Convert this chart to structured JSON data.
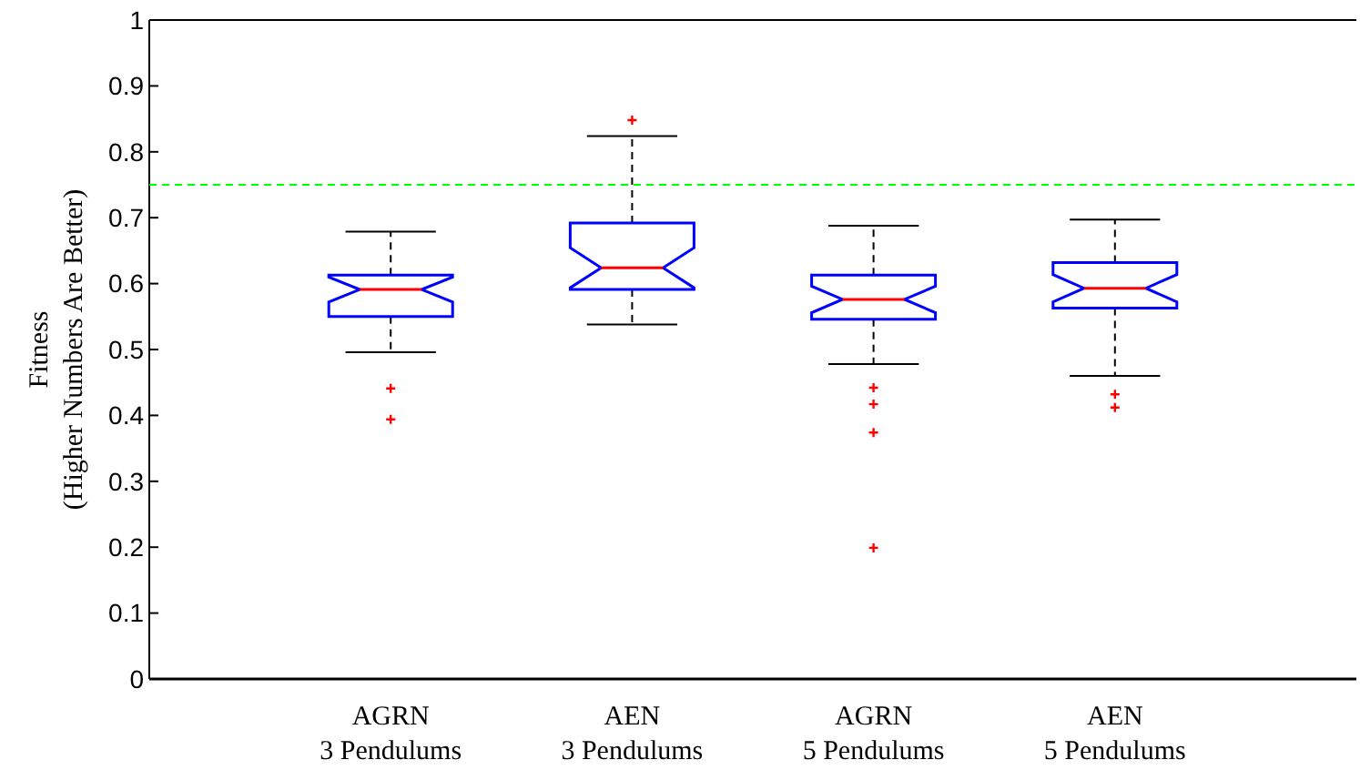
{
  "chart_data": {
    "type": "box",
    "ylabel": "Fitness\n(Higher Numbers Are Better)",
    "categories": [
      "AGRN\n3 Pendulums",
      "AEN\n3 Pendulums",
      "AGRN\n5 Pendulums",
      "AEN\n5 Pendulums"
    ],
    "ylim": [
      0,
      1
    ],
    "yticks": [
      0,
      0.1,
      0.2,
      0.3,
      0.4,
      0.5,
      0.6,
      0.7,
      0.8,
      0.9,
      1
    ],
    "color": "#0000ff",
    "boxes": [
      {
        "low": 0.496,
        "q1": 0.55,
        "median": 0.591,
        "q3": 0.613,
        "high": 0.679,
        "outliers": [
          0.441,
          0.394
        ]
      },
      {
        "low": 0.538,
        "q1": 0.591,
        "median": 0.624,
        "q3": 0.692,
        "high": 0.824,
        "outliers": [
          0.848
        ]
      },
      {
        "low": 0.478,
        "q1": 0.546,
        "median": 0.576,
        "q3": 0.613,
        "high": 0.688,
        "outliers": [
          0.442,
          0.417,
          0.374,
          0.199
        ]
      },
      {
        "low": 0.46,
        "q1": 0.563,
        "median": 0.593,
        "q3": 0.632,
        "high": 0.697,
        "outliers": [
          0.432,
          0.412
        ]
      }
    ],
    "ref_lines": [
      {
        "axis": "y",
        "value": 0.75,
        "color": "#00ff00",
        "line_style": "dashed"
      }
    ],
    "marker": "cross"
  }
}
